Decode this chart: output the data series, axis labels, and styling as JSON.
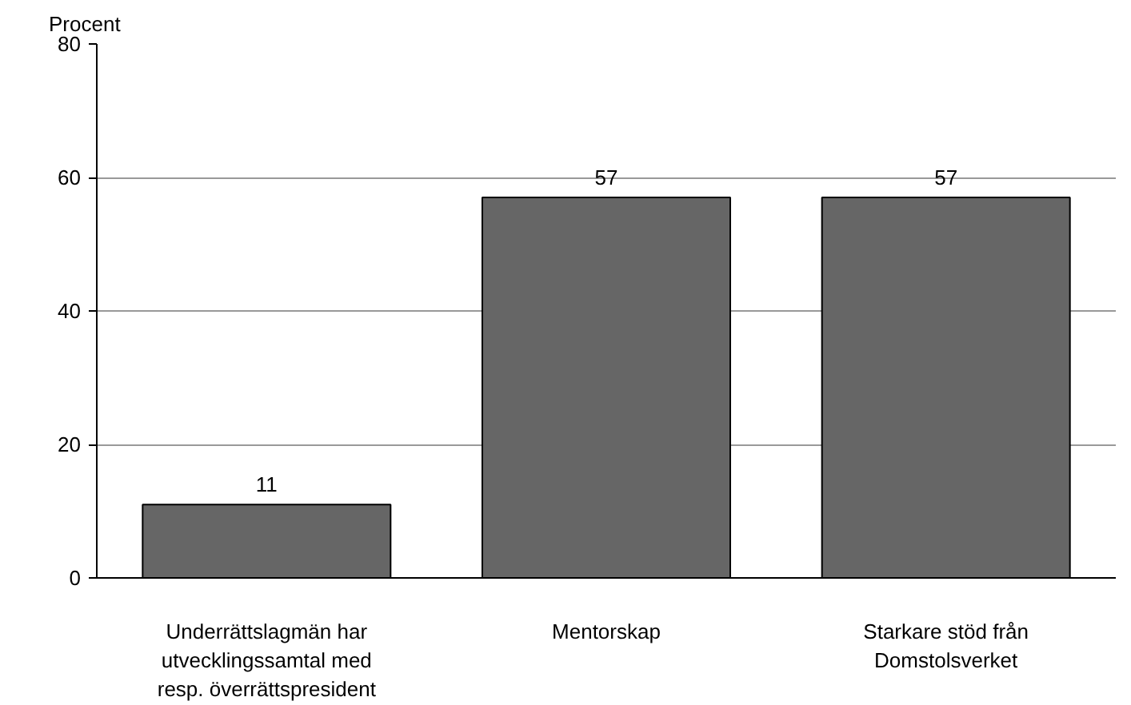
{
  "chart_data": {
    "type": "bar",
    "ylabel": "Procent",
    "categories": [
      "Underrättslagmän har utvecklingssamtal med resp. överrättspresident",
      "Mentorskap",
      "Starkare stöd från Domstolsverket"
    ],
    "values": [
      11,
      57,
      57
    ],
    "color": "#666666",
    "ylim": [
      0,
      80
    ],
    "yticks": [
      0,
      20,
      40,
      60,
      80
    ],
    "grid": "y",
    "data_labels": true
  }
}
